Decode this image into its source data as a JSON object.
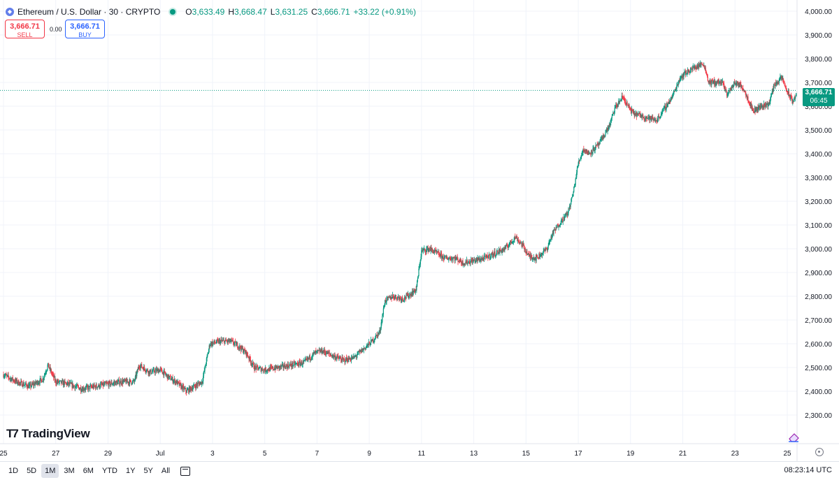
{
  "legend": {
    "symbol": "Ethereum / U.S. Dollar · 30 · CRYPTO",
    "open_label": "O",
    "open": "3,633.49",
    "high_label": "H",
    "high": "3,668.47",
    "low_label": "L",
    "low": "3,631.25",
    "close_label": "C",
    "close": "3,666.71",
    "change": "+33.22 (+0.91%)"
  },
  "trade": {
    "sell_price": "3,666.71",
    "sell_label": "SELL",
    "spread": "0.00",
    "buy_price": "3,666.71",
    "buy_label": "BUY"
  },
  "last_price": {
    "price": "3,666.71",
    "countdown": "06:45"
  },
  "logo": {
    "text": "TradingView"
  },
  "toolbar": {
    "ranges": [
      "1D",
      "5D",
      "1M",
      "3M",
      "6M",
      "YTD",
      "1Y",
      "5Y",
      "All"
    ],
    "active": "1M",
    "time": "08:23:14 UTC"
  },
  "colors": {
    "up": "#089981",
    "down": "#f23645",
    "grid": "#f0f3fa",
    "priceline": "#089981"
  },
  "chart_data": {
    "type": "candlestick",
    "title": "Ethereum / U.S. Dollar · 30 · CRYPTO",
    "interval": "30m",
    "ylim": [
      2250,
      4000
    ],
    "y_ticks": [
      "2,300.00",
      "2,400.00",
      "2,500.00",
      "2,600.00",
      "2,700.00",
      "2,800.00",
      "2,900.00",
      "3,000.00",
      "3,100.00",
      "3,200.00",
      "3,300.00",
      "3,400.00",
      "3,500.00",
      "3,600.00",
      "3,700.00",
      "3,800.00",
      "3,900.00",
      "4,000.00"
    ],
    "x_ticks": [
      "25",
      "27",
      "29",
      "Jul",
      "3",
      "5",
      "7",
      "9",
      "11",
      "13",
      "15",
      "17",
      "19",
      "21",
      "23",
      "25"
    ],
    "x_tick_days": [
      25,
      27,
      29,
      31,
      33,
      35,
      37,
      39,
      41,
      43,
      45,
      47,
      49,
      51,
      53,
      55
    ],
    "x_range_days": [
      25,
      57
    ],
    "grid": true,
    "last_price": 3666.71,
    "price_path": [
      [
        25.0,
        2470
      ],
      [
        25.5,
        2440
      ],
      [
        26.0,
        2420
      ],
      [
        26.5,
        2450
      ],
      [
        26.7,
        2510
      ],
      [
        27.0,
        2440
      ],
      [
        27.5,
        2430
      ],
      [
        28.0,
        2410
      ],
      [
        28.5,
        2420
      ],
      [
        29.0,
        2430
      ],
      [
        29.5,
        2440
      ],
      [
        30.0,
        2440
      ],
      [
        30.2,
        2510
      ],
      [
        30.6,
        2480
      ],
      [
        31.0,
        2490
      ],
      [
        31.3,
        2460
      ],
      [
        31.6,
        2440
      ],
      [
        32.0,
        2400
      ],
      [
        32.3,
        2420
      ],
      [
        32.6,
        2440
      ],
      [
        32.9,
        2600
      ],
      [
        33.3,
        2610
      ],
      [
        33.7,
        2610
      ],
      [
        34.0,
        2590
      ],
      [
        34.3,
        2560
      ],
      [
        34.6,
        2500
      ],
      [
        35.0,
        2490
      ],
      [
        35.5,
        2500
      ],
      [
        36.0,
        2510
      ],
      [
        36.5,
        2520
      ],
      [
        36.9,
        2560
      ],
      [
        37.2,
        2570
      ],
      [
        37.6,
        2550
      ],
      [
        38.0,
        2530
      ],
      [
        38.4,
        2540
      ],
      [
        38.8,
        2580
      ],
      [
        39.1,
        2610
      ],
      [
        39.4,
        2650
      ],
      [
        39.6,
        2780
      ],
      [
        39.9,
        2800
      ],
      [
        40.3,
        2790
      ],
      [
        40.6,
        2810
      ],
      [
        40.8,
        2830
      ],
      [
        41.0,
        2990
      ],
      [
        41.3,
        3000
      ],
      [
        41.6,
        2980
      ],
      [
        41.9,
        2960
      ],
      [
        42.3,
        2960
      ],
      [
        42.6,
        2940
      ],
      [
        43.0,
        2950
      ],
      [
        43.4,
        2960
      ],
      [
        43.8,
        2980
      ],
      [
        44.2,
        3000
      ],
      [
        44.6,
        3050
      ],
      [
        44.9,
        3010
      ],
      [
        45.1,
        2970
      ],
      [
        45.4,
        2960
      ],
      [
        45.8,
        3000
      ],
      [
        46.0,
        3060
      ],
      [
        46.3,
        3110
      ],
      [
        46.6,
        3150
      ],
      [
        46.8,
        3230
      ],
      [
        47.0,
        3360
      ],
      [
        47.2,
        3420
      ],
      [
        47.4,
        3400
      ],
      [
        47.6,
        3420
      ],
      [
        47.8,
        3440
      ],
      [
        48.0,
        3480
      ],
      [
        48.2,
        3520
      ],
      [
        48.4,
        3590
      ],
      [
        48.7,
        3640
      ],
      [
        48.9,
        3600
      ],
      [
        49.1,
        3570
      ],
      [
        49.4,
        3560
      ],
      [
        49.7,
        3550
      ],
      [
        50.0,
        3540
      ],
      [
        50.3,
        3590
      ],
      [
        50.6,
        3640
      ],
      [
        50.9,
        3720
      ],
      [
        51.1,
        3740
      ],
      [
        51.4,
        3760
      ],
      [
        51.8,
        3780
      ],
      [
        52.0,
        3700
      ],
      [
        52.2,
        3700
      ],
      [
        52.5,
        3700
      ],
      [
        52.7,
        3650
      ],
      [
        53.0,
        3700
      ],
      [
        53.3,
        3680
      ],
      [
        53.5,
        3630
      ],
      [
        53.7,
        3580
      ],
      [
        54.0,
        3600
      ],
      [
        54.3,
        3610
      ],
      [
        54.5,
        3690
      ],
      [
        54.8,
        3720
      ],
      [
        55.0,
        3660
      ],
      [
        55.2,
        3620
      ],
      [
        55.45,
        3666.71
      ]
    ]
  }
}
